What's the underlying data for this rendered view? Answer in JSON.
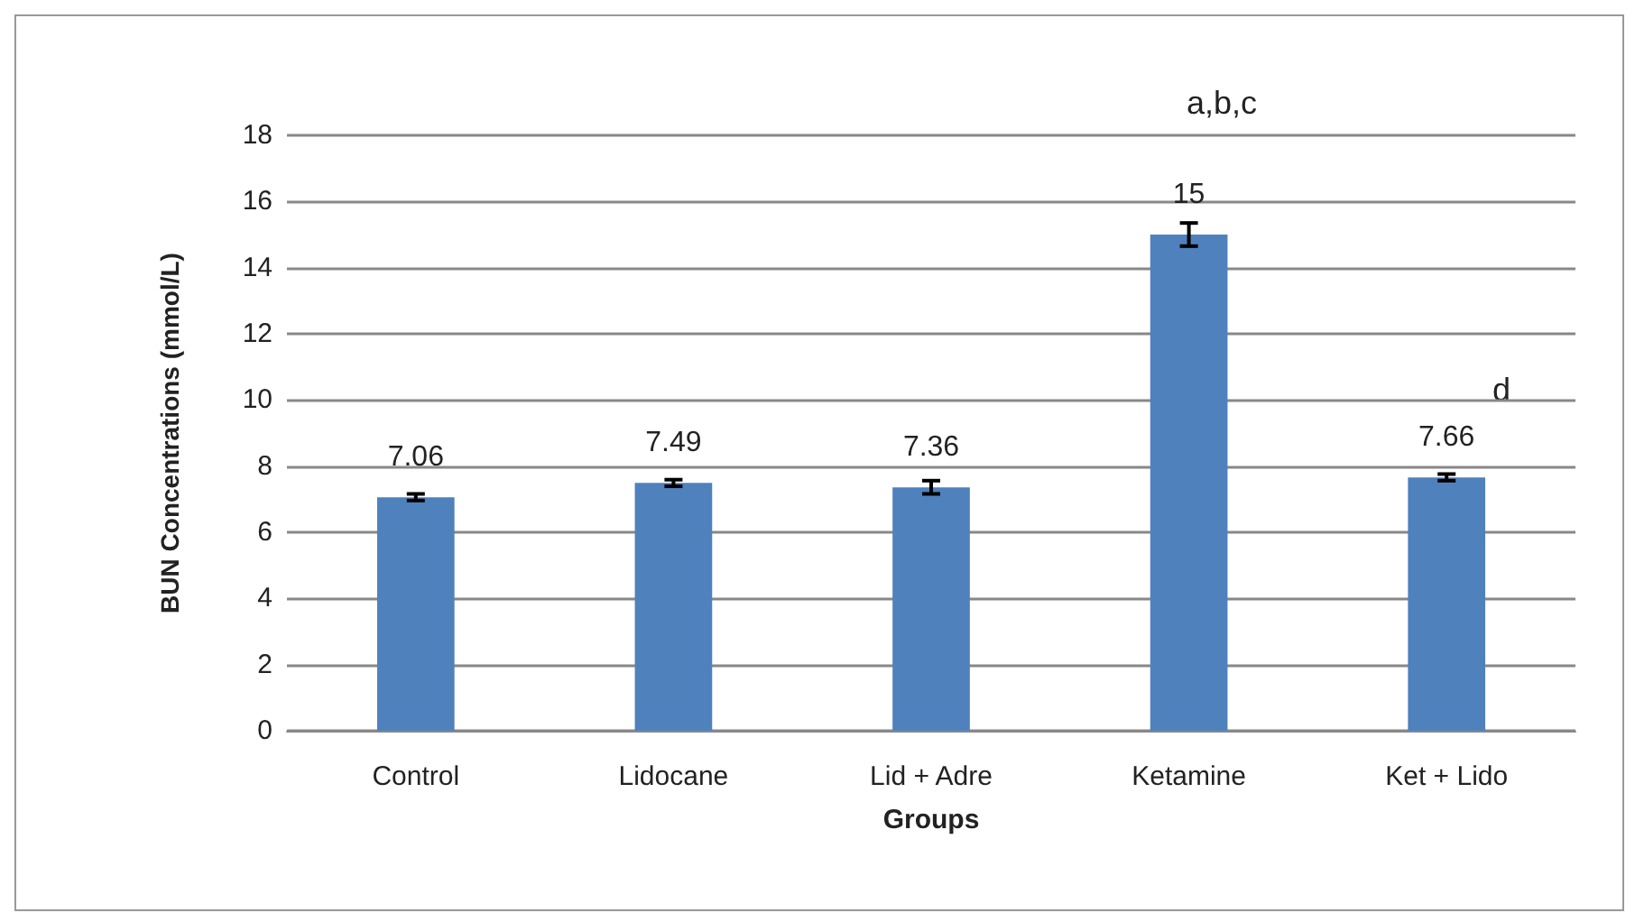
{
  "chart_data": {
    "type": "bar",
    "xlabel": "Groups",
    "ylabel": "BUN Concentrations (mmol/L)",
    "categories": [
      "Control",
      "Lidocane",
      "Lid + Adre",
      "Ketamine",
      "Ket + Lido"
    ],
    "values": [
      7.06,
      7.49,
      7.36,
      15,
      7.66
    ],
    "errors": [
      0.1,
      0.1,
      0.2,
      0.35,
      0.1
    ],
    "color": "#4f81bd",
    "ylim": [
      0,
      18
    ],
    "yticks": [
      0,
      2,
      4,
      6,
      8,
      10,
      12,
      14,
      16,
      18
    ],
    "grid": "y",
    "data_labels": true,
    "annotations": [
      "a,b,c",
      "d"
    ]
  }
}
